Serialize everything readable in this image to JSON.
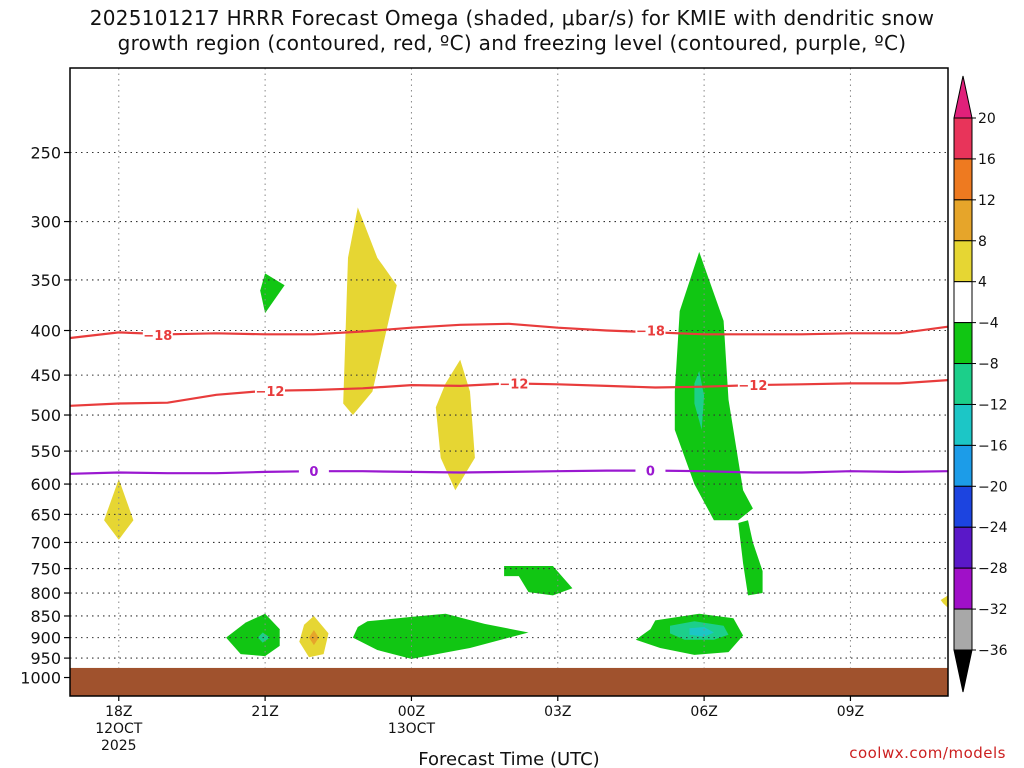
{
  "title": {
    "line1": "2025101217 HRRR Forecast Omega (shaded, μbar/s) for KMIE with dendritic snow",
    "line2": "growth region (contoured, red, ºC) and freezing level (contoured, purple, ºC)"
  },
  "credit": "coolwx.com/models",
  "chart_data": {
    "type": "heatmap",
    "xlabel": "Forecast Time (UTC)",
    "x_ticks": [
      {
        "hour": 18,
        "lines": [
          "18Z",
          "12OCT",
          "2025"
        ]
      },
      {
        "hour": 21,
        "lines": [
          "21Z"
        ]
      },
      {
        "hour": 24,
        "lines": [
          "00Z",
          "13OCT"
        ]
      },
      {
        "hour": 27,
        "lines": [
          "03Z"
        ]
      },
      {
        "hour": 30,
        "lines": [
          "06Z"
        ]
      },
      {
        "hour": 33,
        "lines": [
          "09Z"
        ]
      }
    ],
    "xlim": [
      17,
      35
    ],
    "y_ticks": [
      250,
      300,
      350,
      400,
      450,
      500,
      550,
      600,
      650,
      700,
      750,
      800,
      850,
      900,
      950,
      1000
    ],
    "ylim": [
      200,
      1050
    ],
    "y_scale": "log-pressure",
    "ground_pressure": 975,
    "colorbar": {
      "labels": [
        "20",
        "16",
        "12",
        "8",
        "4",
        "−4",
        "−8",
        "−12",
        "−16",
        "−20",
        "−24",
        "−28",
        "−32",
        "−36"
      ],
      "bins": [
        {
          "color": "#e8345a",
          "from": 20,
          "to": 16
        },
        {
          "color": "#ee7a20",
          "from": 16,
          "to": 12
        },
        {
          "color": "#e6a52a",
          "from": 12,
          "to": 8
        },
        {
          "color": "#e6d633",
          "from": 8,
          "to": 4
        },
        {
          "color": "#ffffff",
          "from": 4,
          "to": -4
        },
        {
          "color": "#11c613",
          "from": -4,
          "to": -8
        },
        {
          "color": "#1ccf8a",
          "from": -8,
          "to": -12
        },
        {
          "color": "#1cc6c6",
          "from": -12,
          "to": -16
        },
        {
          "color": "#1c9ce8",
          "from": -16,
          "to": -20
        },
        {
          "color": "#1c44e0",
          "from": -20,
          "to": -24
        },
        {
          "color": "#5a18c8",
          "from": -24,
          "to": -28
        },
        {
          "color": "#a010c8",
          "from": -28,
          "to": -32
        },
        {
          "color": "#a8a8a8",
          "from": -32,
          "to": -36
        }
      ],
      "over_color": "#e0207a",
      "under_color": "#000000"
    },
    "regions": [
      {
        "color": "#e6d633",
        "points": [
          [
            18,
            592
          ],
          [
            18.3,
            660
          ],
          [
            18,
            695
          ],
          [
            17.7,
            660
          ]
        ]
      },
      {
        "color": "#11c613",
        "points": [
          [
            21,
            344
          ],
          [
            21.4,
            355
          ],
          [
            21,
            382
          ],
          [
            20.9,
            360
          ]
        ]
      },
      {
        "color": "#e6d633",
        "points": [
          [
            22.9,
            289
          ],
          [
            23.3,
            330
          ],
          [
            23.7,
            355
          ],
          [
            23.2,
            470
          ],
          [
            22.8,
            500
          ],
          [
            22.6,
            485
          ],
          [
            22.7,
            330
          ]
        ]
      },
      {
        "color": "#e6d633",
        "points": [
          [
            25,
            432
          ],
          [
            25.2,
            470
          ],
          [
            25.3,
            560
          ],
          [
            24.9,
            610
          ],
          [
            24.6,
            560
          ],
          [
            24.5,
            490
          ],
          [
            24.7,
            460
          ]
        ]
      },
      {
        "color": "#11c613",
        "points": [
          [
            29.9,
            325
          ],
          [
            30.4,
            390
          ],
          [
            30.5,
            480
          ],
          [
            30.8,
            610
          ],
          [
            31,
            640
          ],
          [
            30.7,
            660
          ],
          [
            30.2,
            660
          ],
          [
            29.8,
            600
          ],
          [
            29.4,
            520
          ],
          [
            29.4,
            470
          ],
          [
            29.5,
            380
          ]
        ]
      },
      {
        "color": "#1ccf8a",
        "points": [
          [
            29.9,
            445
          ],
          [
            30,
            475
          ],
          [
            29.95,
            520
          ],
          [
            29.8,
            485
          ],
          [
            29.8,
            460
          ]
        ]
      },
      {
        "color": "#11c613",
        "points": [
          [
            30.9,
            660
          ],
          [
            31,
            700
          ],
          [
            31.2,
            755
          ],
          [
            31.2,
            800
          ],
          [
            30.9,
            805
          ],
          [
            30.8,
            740
          ],
          [
            30.7,
            665
          ]
        ]
      },
      {
        "color": "#11c613",
        "points": [
          [
            25.9,
            745
          ],
          [
            26.9,
            745
          ],
          [
            27.3,
            790
          ],
          [
            26.9,
            805
          ],
          [
            26.4,
            798
          ],
          [
            26.2,
            765
          ],
          [
            25.9,
            765
          ]
        ]
      },
      {
        "color": "#11c613",
        "points": [
          [
            21,
            845
          ],
          [
            21.3,
            880
          ],
          [
            21.3,
            920
          ],
          [
            21,
            945
          ],
          [
            20.5,
            940
          ],
          [
            20.2,
            900
          ],
          [
            20.6,
            865
          ]
        ]
      },
      {
        "color": "#1ccf8a",
        "points": [
          [
            20.95,
            888
          ],
          [
            21.1,
            900
          ],
          [
            20.95,
            912
          ],
          [
            20.85,
            900
          ]
        ]
      },
      {
        "color": "#e6d633",
        "points": [
          [
            22,
            850
          ],
          [
            22.3,
            890
          ],
          [
            22.2,
            940
          ],
          [
            21.9,
            948
          ],
          [
            21.7,
            910
          ],
          [
            21.8,
            870
          ]
        ]
      },
      {
        "color": "#e6a52a",
        "points": [
          [
            22,
            882
          ],
          [
            22.1,
            900
          ],
          [
            22,
            918
          ],
          [
            21.9,
            900
          ]
        ]
      },
      {
        "color": "#11c613",
        "points": [
          [
            23.1,
            862
          ],
          [
            24,
            852
          ],
          [
            24.7,
            845
          ],
          [
            25.5,
            868
          ],
          [
            26.4,
            888
          ],
          [
            25.2,
            925
          ],
          [
            24,
            952
          ],
          [
            23.3,
            930
          ],
          [
            22.8,
            900
          ],
          [
            22.9,
            875
          ]
        ]
      },
      {
        "color": "#11c613",
        "points": [
          [
            29,
            860
          ],
          [
            29.9,
            845
          ],
          [
            30.6,
            855
          ],
          [
            30.8,
            895
          ],
          [
            30.5,
            935
          ],
          [
            29.8,
            942
          ],
          [
            29.1,
            925
          ],
          [
            28.6,
            905
          ],
          [
            28.9,
            880
          ]
        ]
      },
      {
        "color": "#1ccf8a",
        "points": [
          [
            29.3,
            872
          ],
          [
            29.8,
            862
          ],
          [
            30.4,
            872
          ],
          [
            30.5,
            893
          ],
          [
            30.2,
            905
          ],
          [
            29.6,
            905
          ],
          [
            29.3,
            890
          ]
        ]
      },
      {
        "color": "#1cc6c6",
        "points": [
          [
            29.7,
            878
          ],
          [
            30,
            875
          ],
          [
            30.2,
            888
          ],
          [
            30,
            898
          ],
          [
            29.7,
            893
          ]
        ]
      },
      {
        "color": "#e6d633",
        "points": [
          [
            35,
            805
          ],
          [
            35,
            832
          ],
          [
            34.9,
            822
          ],
          [
            34.85,
            815
          ]
        ]
      }
    ],
    "contours": [
      {
        "label": "−18",
        "color": "#e83c3c",
        "points": [
          [
            17,
            408
          ],
          [
            18,
            402
          ],
          [
            19,
            404
          ],
          [
            20,
            403
          ],
          [
            21,
            404
          ],
          [
            22,
            404
          ],
          [
            23,
            401
          ],
          [
            24,
            397
          ],
          [
            25,
            394
          ],
          [
            26,
            393
          ],
          [
            27,
            397
          ],
          [
            28,
            400
          ],
          [
            29,
            402
          ],
          [
            30,
            404
          ],
          [
            31,
            404
          ],
          [
            32,
            404
          ],
          [
            33,
            403
          ],
          [
            34,
            403
          ],
          [
            35,
            396
          ]
        ],
        "label_at": [
          [
            18.8,
            405
          ],
          [
            28.9,
            400
          ]
        ]
      },
      {
        "label": "−12",
        "color": "#e83c3c",
        "points": [
          [
            17,
            488
          ],
          [
            18,
            485
          ],
          [
            19,
            484
          ],
          [
            20,
            474
          ],
          [
            21,
            469
          ],
          [
            22,
            468
          ],
          [
            23,
            466
          ],
          [
            24,
            462
          ],
          [
            25,
            463
          ],
          [
            26,
            460
          ],
          [
            27,
            461
          ],
          [
            28,
            463
          ],
          [
            29,
            465
          ],
          [
            30,
            464
          ],
          [
            31,
            462
          ],
          [
            32,
            461
          ],
          [
            33,
            460
          ],
          [
            34,
            460
          ],
          [
            35,
            456
          ]
        ],
        "label_at": [
          [
            21.1,
            469
          ],
          [
            26.1,
            460
          ],
          [
            31,
            462
          ]
        ]
      },
      {
        "label": "0",
        "color": "#9a18d0",
        "points": [
          [
            17,
            584
          ],
          [
            18,
            582
          ],
          [
            19,
            583
          ],
          [
            20,
            583
          ],
          [
            21,
            581
          ],
          [
            22,
            580
          ],
          [
            23,
            580
          ],
          [
            24,
            581
          ],
          [
            25,
            582
          ],
          [
            26,
            581
          ],
          [
            27,
            580
          ],
          [
            28,
            579
          ],
          [
            29,
            579
          ],
          [
            30,
            580
          ],
          [
            31,
            582
          ],
          [
            32,
            582
          ],
          [
            33,
            580
          ],
          [
            34,
            581
          ],
          [
            35,
            580
          ]
        ],
        "label_at": [
          [
            22,
            580
          ],
          [
            28.9,
            579
          ]
        ]
      }
    ]
  }
}
